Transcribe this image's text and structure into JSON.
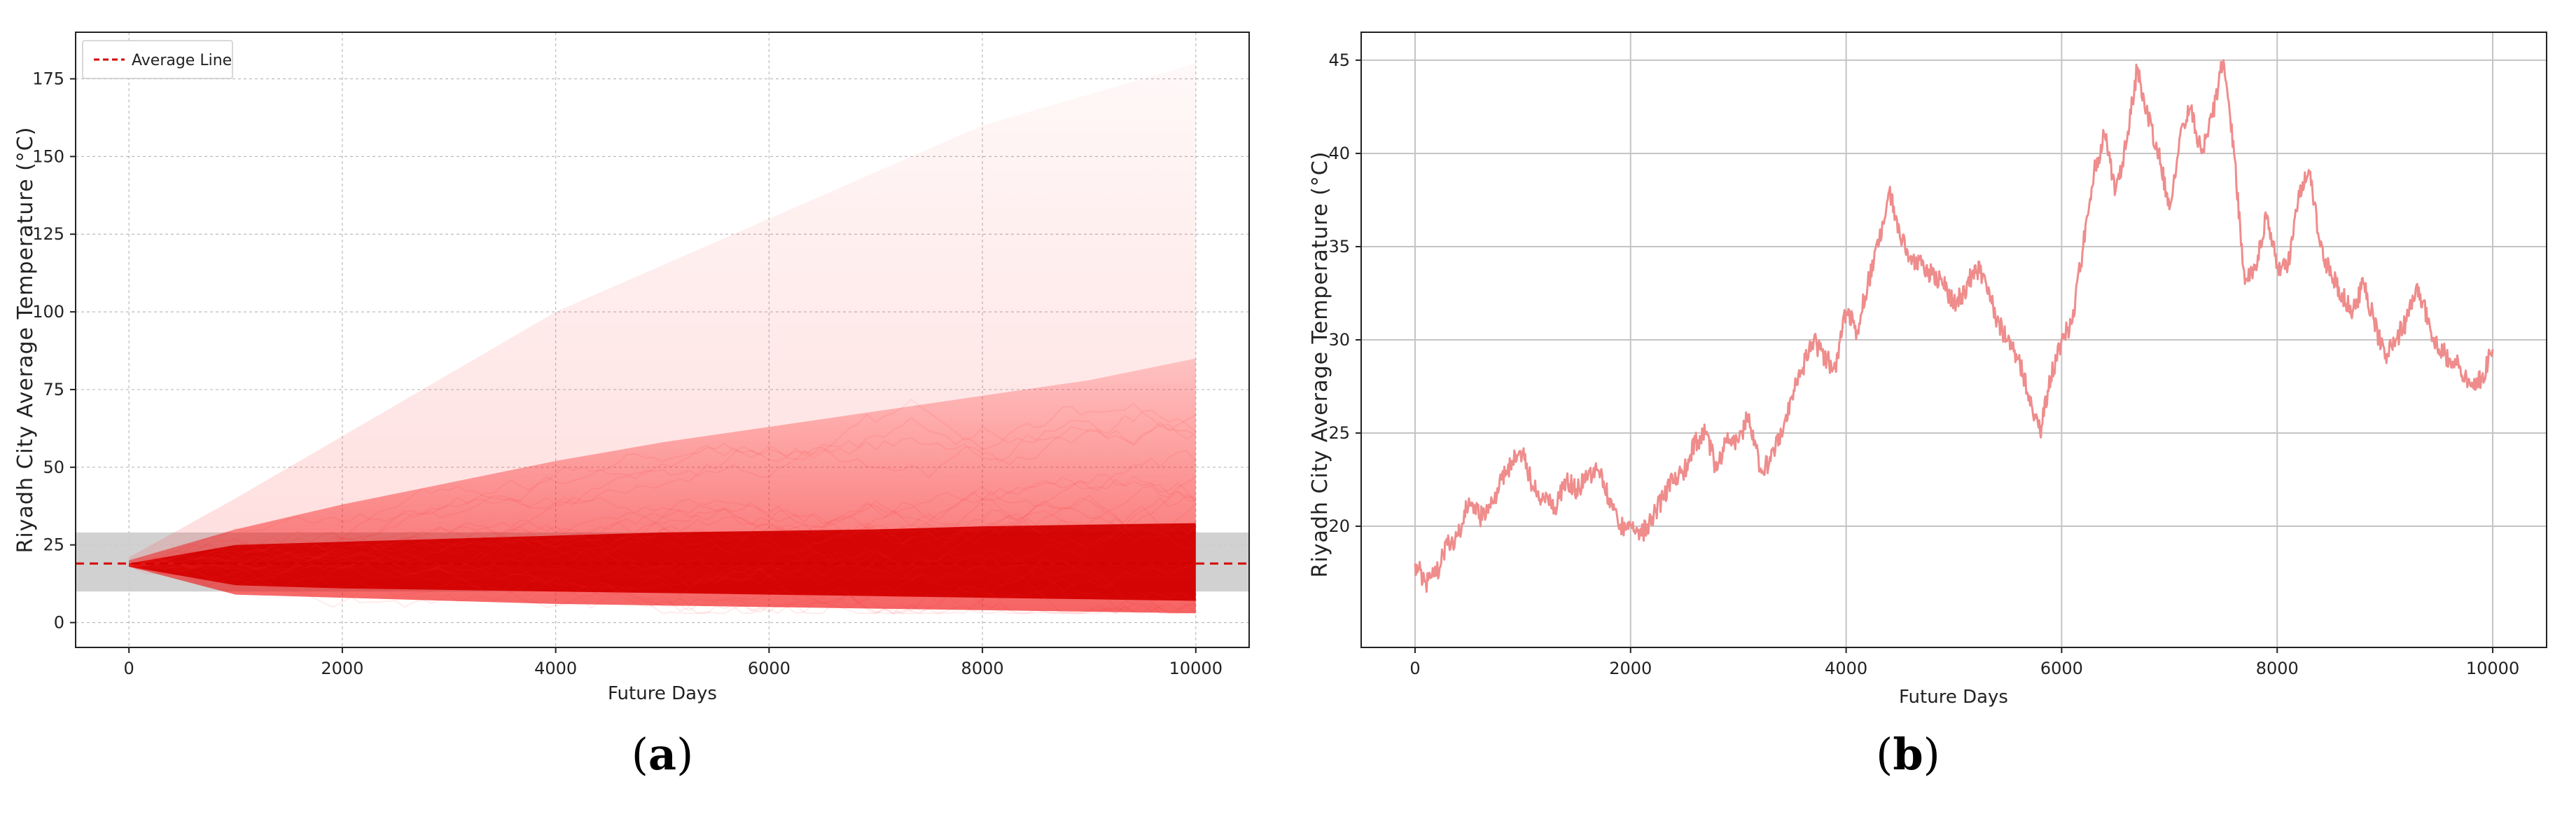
{
  "chart_data": [
    {
      "panel": "a",
      "type": "line",
      "xlabel": "Future Days",
      "ylabel": "Riyadh City Average Temperature (°C)",
      "xlim": [
        -500,
        10500
      ],
      "ylim": [
        -8,
        190
      ],
      "x_ticks": [
        0,
        2000,
        4000,
        6000,
        8000,
        10000
      ],
      "y_ticks": [
        0,
        25,
        50,
        75,
        100,
        125,
        150,
        175
      ],
      "grid": true,
      "legend": {
        "position": "top-left",
        "entries": [
          {
            "label": "Average Line",
            "style": "dashed",
            "color": "#d40000"
          }
        ]
      },
      "average_line": {
        "y": 19
      },
      "band": {
        "y_from": 10,
        "y_to": 29,
        "color": "#cccccc"
      },
      "series": [
        {
          "x": [
            0,
            1000,
            2000,
            3000,
            4000,
            5000,
            6000,
            7000,
            8000,
            9000,
            10000
          ],
          "y": [
            18.5,
            18,
            17.5,
            17,
            16.5,
            16,
            15.5,
            15,
            14.5,
            14,
            13.5
          ]
        }
      ],
      "envelope": {
        "x": [
          0,
          1000,
          2000,
          3000,
          4000,
          5000,
          6000,
          7000,
          8000,
          9000,
          10000
        ],
        "dense_lo": [
          18,
          12,
          11,
          10.5,
          10,
          9.5,
          9,
          8.5,
          8,
          7.5,
          7
        ],
        "dense_hi": [
          19,
          25,
          26,
          27,
          28,
          29,
          29.5,
          30,
          31,
          31.5,
          32
        ],
        "mid_hi": [
          20,
          30,
          38,
          45,
          52,
          58,
          63,
          68,
          73,
          78,
          85
        ],
        "outer_hi": [
          21,
          40,
          60,
          80,
          100,
          115,
          130,
          145,
          160,
          170,
          180
        ],
        "lo": [
          18,
          9,
          8,
          7,
          6,
          5.5,
          5,
          4.5,
          4,
          3.5,
          3
        ]
      },
      "color": "#d40000"
    },
    {
      "panel": "b",
      "type": "line",
      "xlabel": "Future Days",
      "ylabel": "Riyadh City Average Temperature (°C)",
      "xlim": [
        -500,
        10500
      ],
      "ylim": [
        13.5,
        46.5
      ],
      "x_ticks": [
        0,
        2000,
        4000,
        6000,
        8000,
        10000
      ],
      "y_ticks": [
        20,
        25,
        30,
        35,
        40,
        45
      ],
      "grid": true,
      "series": [
        {
          "color": "#ef8c8c",
          "x": [
            0,
            100,
            200,
            300,
            400,
            500,
            600,
            700,
            800,
            900,
            1000,
            1100,
            1200,
            1300,
            1400,
            1500,
            1600,
            1700,
            1800,
            1900,
            2000,
            2100,
            2200,
            2300,
            2400,
            2500,
            2600,
            2700,
            2800,
            2900,
            3000,
            3100,
            3200,
            3300,
            3400,
            3500,
            3600,
            3700,
            3800,
            3900,
            4000,
            4100,
            4200,
            4300,
            4400,
            4500,
            4600,
            4700,
            4800,
            4900,
            5000,
            5100,
            5200,
            5300,
            5400,
            5500,
            5600,
            5700,
            5800,
            5900,
            6000,
            6100,
            6200,
            6300,
            6400,
            6500,
            6600,
            6700,
            6800,
            6900,
            7000,
            7100,
            7200,
            7300,
            7400,
            7500,
            7600,
            7700,
            7800,
            7900,
            8000,
            8100,
            8200,
            8300,
            8400,
            8500,
            8600,
            8700,
            8800,
            8900,
            9000,
            9100,
            9200,
            9300,
            9400,
            9500,
            9600,
            9700,
            9800,
            9900,
            10000
          ],
          "y": [
            18,
            17,
            17.5,
            19,
            19.5,
            21.5,
            20.5,
            21,
            22.5,
            23.5,
            24,
            22,
            21.5,
            21,
            22.5,
            22,
            22.5,
            23,
            21.5,
            20,
            20,
            19.5,
            20.5,
            21.5,
            22.5,
            23,
            24.5,
            25,
            23,
            25,
            24.5,
            26,
            23,
            23.5,
            25,
            27,
            28.5,
            30,
            29,
            28.5,
            31.5,
            30.5,
            33,
            35,
            38,
            35.5,
            34.5,
            34,
            33.5,
            33,
            32,
            32.5,
            34,
            33,
            31,
            30,
            29,
            27,
            25,
            28,
            30,
            31,
            35,
            39,
            41,
            38,
            40.5,
            44.5,
            42,
            40,
            37,
            41,
            42.5,
            40,
            42,
            45,
            40,
            33,
            34,
            36.5,
            34,
            34,
            38,
            39,
            35,
            33.5,
            32.5,
            31.5,
            33,
            31,
            29,
            30,
            31,
            33,
            31,
            29.5,
            29,
            28.5,
            27.5,
            28,
            29.5
          ]
        }
      ]
    }
  ],
  "panel_labels": {
    "a": "a",
    "b": "b"
  }
}
